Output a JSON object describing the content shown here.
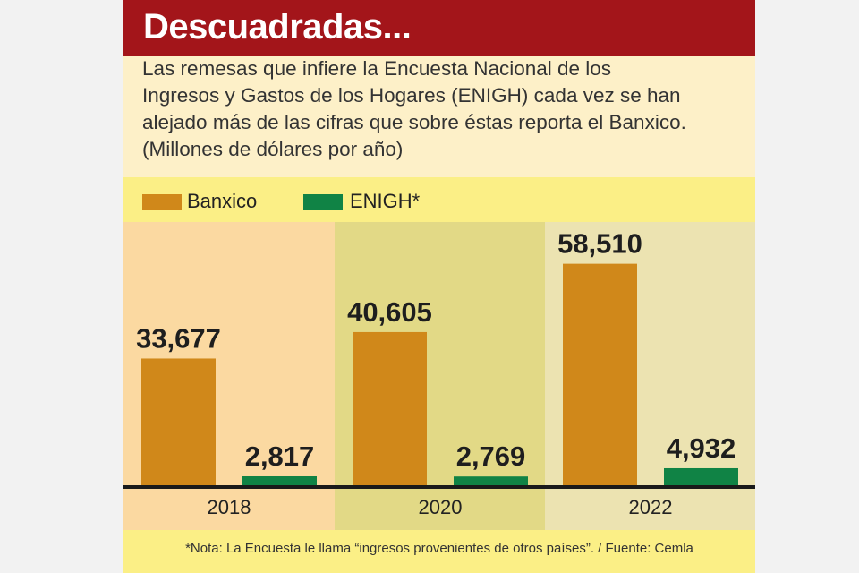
{
  "header": {
    "title": "Descuadradas..."
  },
  "description": {
    "lines": [
      "Las remesas que infiere la Encuesta Nacional de los",
      "Ingresos y Gastos de los Hogares (ENIGH) cada vez se han",
      "alejado más de las cifras que sobre éstas reporta el Banxico.",
      "(Millones de dólares por año)"
    ]
  },
  "legend": {
    "items": [
      {
        "label": "Banxico",
        "color": "#d0881a"
      },
      {
        "label": "ENIGH*",
        "color": "#108345"
      }
    ]
  },
  "chart_data": {
    "type": "bar",
    "title": "Descuadradas...",
    "ylabel": "Millones de dólares por año",
    "xlabel": "",
    "ylim": [
      0,
      60000
    ],
    "categories": [
      "2018",
      "2020",
      "2022"
    ],
    "series": [
      {
        "name": "Banxico",
        "values": [
          33677,
          40605,
          58510
        ],
        "labels": [
          "33,677",
          "40,605",
          "58,510"
        ]
      },
      {
        "name": "ENIGH*",
        "values": [
          2817,
          2769,
          4932
        ],
        "labels": [
          "2,817",
          "2,769",
          "4,932"
        ]
      }
    ]
  },
  "footer": {
    "note": "*Nota: La Encuesta le llama “ingresos provenientes de otros países”. / Fuente: Cemla"
  }
}
